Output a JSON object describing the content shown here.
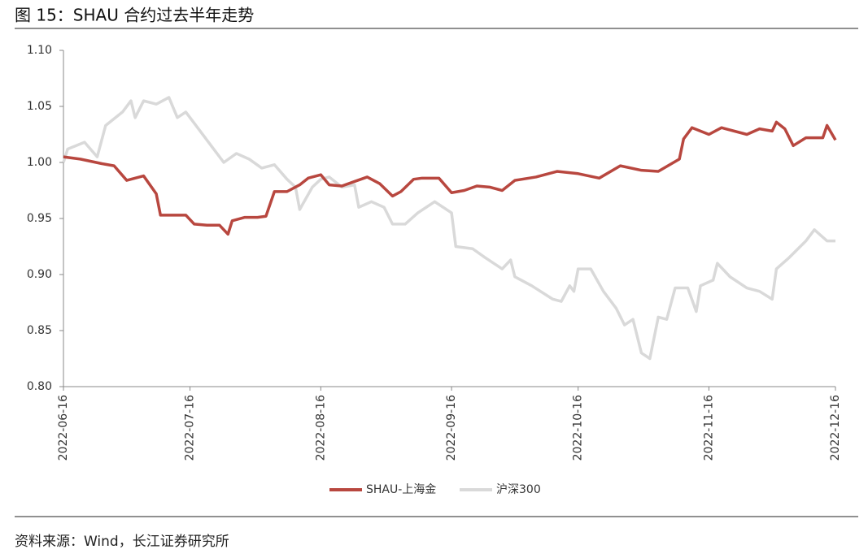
{
  "chart_data": {
    "type": "line",
    "title": "图 15：SHAU 合约过去半年走势",
    "source": "资料来源：Wind，长江证券研究所",
    "xlim": [
      "2022-06-16",
      "2022-12-16"
    ],
    "xticks": [
      "2022-06-16",
      "2022-07-16",
      "2022-08-16",
      "2022-09-16",
      "2022-10-16",
      "2022-11-16",
      "2022-12-16"
    ],
    "ylim": [
      0.8,
      1.1
    ],
    "yticks": [
      {
        "value": 0.8,
        "label": "0.80"
      },
      0.85,
      {
        "value": 0.9,
        "label": "0.90"
      },
      0.95,
      {
        "value": 1.0,
        "label": "1.00"
      },
      1.05,
      {
        "value": 1.1,
        "label": "1.10"
      }
    ],
    "grid": false,
    "legend": "bottom",
    "series": [
      {
        "name": "SHAU-上海金",
        "color": "#b8473f",
        "x": [
          "2022-06-16",
          "2022-06-20",
          "2022-06-25",
          "2022-06-28",
          "2022-07-01",
          "2022-07-05",
          "2022-07-08",
          "2022-07-09",
          "2022-07-12",
          "2022-07-15",
          "2022-07-17",
          "2022-07-20",
          "2022-07-23",
          "2022-07-25",
          "2022-07-26",
          "2022-07-29",
          "2022-08-01",
          "2022-08-03",
          "2022-08-05",
          "2022-08-08",
          "2022-08-11",
          "2022-08-13",
          "2022-08-16",
          "2022-08-18",
          "2022-08-21",
          "2022-08-24",
          "2022-08-27",
          "2022-08-30",
          "2022-09-02",
          "2022-09-04",
          "2022-09-07",
          "2022-09-09",
          "2022-09-13",
          "2022-09-16",
          "2022-09-19",
          "2022-09-22",
          "2022-09-25",
          "2022-09-28",
          "2022-10-01",
          "2022-10-06",
          "2022-10-11",
          "2022-10-16",
          "2022-10-21",
          "2022-10-26",
          "2022-10-31",
          "2022-11-04",
          "2022-11-09",
          "2022-11-10",
          "2022-11-12",
          "2022-11-16",
          "2022-11-19",
          "2022-11-25",
          "2022-11-28",
          "2022-12-01",
          "2022-12-02",
          "2022-12-04",
          "2022-12-06",
          "2022-12-09",
          "2022-12-13",
          "2022-12-14",
          "2022-12-16"
        ],
        "values": [
          1.005,
          1.003,
          0.999,
          0.997,
          0.984,
          0.988,
          0.972,
          0.953,
          0.953,
          0.953,
          0.945,
          0.944,
          0.944,
          0.936,
          0.948,
          0.951,
          0.951,
          0.952,
          0.974,
          0.974,
          0.98,
          0.986,
          0.989,
          0.98,
          0.979,
          0.983,
          0.987,
          0.981,
          0.97,
          0.974,
          0.985,
          0.986,
          0.986,
          0.973,
          0.975,
          0.979,
          0.978,
          0.975,
          0.984,
          0.987,
          0.992,
          0.99,
          0.986,
          0.997,
          0.993,
          0.992,
          1.003,
          1.021,
          1.031,
          1.025,
          1.031,
          1.025,
          1.03,
          1.028,
          1.036,
          1.03,
          1.015,
          1.022,
          1.022,
          1.033,
          1.02
        ]
      },
      {
        "name": "沪深300",
        "color": "#d9d9d9",
        "x": [
          "2022-06-16",
          "2022-06-17",
          "2022-06-21",
          "2022-06-24",
          "2022-06-26",
          "2022-06-30",
          "2022-07-02",
          "2022-07-03",
          "2022-07-05",
          "2022-07-08",
          "2022-07-11",
          "2022-07-13",
          "2022-07-15",
          "2022-07-18",
          "2022-07-21",
          "2022-07-24",
          "2022-07-27",
          "2022-07-30",
          "2022-08-02",
          "2022-08-05",
          "2022-08-08",
          "2022-08-10",
          "2022-08-11",
          "2022-08-14",
          "2022-08-16",
          "2022-08-18",
          "2022-08-21",
          "2022-08-24",
          "2022-08-25",
          "2022-08-28",
          "2022-08-31",
          "2022-09-02",
          "2022-09-05",
          "2022-09-08",
          "2022-09-12",
          "2022-09-16",
          "2022-09-17",
          "2022-09-21",
          "2022-09-24",
          "2022-09-28",
          "2022-09-30",
          "2022-10-01",
          "2022-10-05",
          "2022-10-10",
          "2022-10-12",
          "2022-10-14",
          "2022-10-15",
          "2022-10-16",
          "2022-10-19",
          "2022-10-22",
          "2022-10-25",
          "2022-10-27",
          "2022-10-29",
          "2022-10-31",
          "2022-11-02",
          "2022-11-04",
          "2022-11-06",
          "2022-11-08",
          "2022-11-11",
          "2022-11-13",
          "2022-11-14",
          "2022-11-17",
          "2022-11-18",
          "2022-11-21",
          "2022-11-25",
          "2022-11-28",
          "2022-12-01",
          "2022-12-02",
          "2022-12-05",
          "2022-12-09",
          "2022-12-11",
          "2022-12-14",
          "2022-12-16"
        ],
        "values": [
          1.0,
          1.012,
          1.018,
          1.005,
          1.033,
          1.045,
          1.055,
          1.04,
          1.055,
          1.052,
          1.058,
          1.04,
          1.045,
          1.03,
          1.015,
          1.0,
          1.008,
          1.003,
          0.995,
          0.998,
          0.985,
          0.978,
          0.958,
          0.978,
          0.985,
          0.987,
          0.978,
          0.98,
          0.96,
          0.965,
          0.96,
          0.945,
          0.945,
          0.955,
          0.965,
          0.955,
          0.925,
          0.923,
          0.915,
          0.905,
          0.913,
          0.898,
          0.89,
          0.878,
          0.876,
          0.89,
          0.885,
          0.905,
          0.905,
          0.885,
          0.87,
          0.855,
          0.86,
          0.83,
          0.825,
          0.862,
          0.86,
          0.888,
          0.888,
          0.867,
          0.89,
          0.895,
          0.91,
          0.898,
          0.888,
          0.885,
          0.878,
          0.905,
          0.915,
          0.93,
          0.94,
          0.93,
          0.93
        ]
      }
    ]
  }
}
